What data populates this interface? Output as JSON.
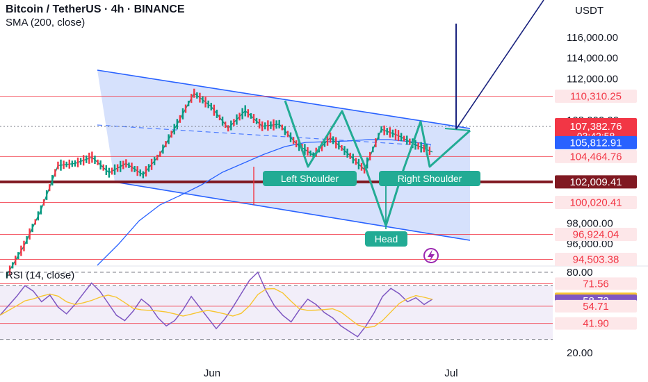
{
  "header": {
    "title": "Bitcoin / TetherUS · 4h · BINANCE",
    "indicator": "SMA (200, close)",
    "rsi_label": "RSI (14, close)",
    "currency": "USDT"
  },
  "colors": {
    "channel_fill": "#cfdcfb",
    "channel_line": "#2962ff",
    "pattern": "#22ab94",
    "sma": "#2962ff",
    "support": "#f23645",
    "key_level": "#801922",
    "rsi_line": "#7e57c2",
    "rsi_ma": "#f7c531"
  },
  "chart_data": [
    {
      "type": "line",
      "title": "Bitcoin / TetherUS · 4h · BINANCE",
      "ylabel": "USDT",
      "ylim": [
        93000,
        119500
      ],
      "x_ticks": [
        "Jun",
        "Jul"
      ],
      "y_ticks": [
        "116,000.00",
        "114,000.00",
        "112,000.00",
        "108,000.00",
        "98,000.00",
        "96,000.00"
      ],
      "series": [
        {
          "name": "BTCUSDT",
          "x": [
            0,
            6,
            12,
            18,
            24,
            30,
            36,
            42,
            48,
            54,
            60,
            66,
            72,
            78,
            84,
            90,
            96,
            102,
            108,
            114,
            120,
            126,
            132,
            138,
            144,
            150
          ],
          "values": [
            93000,
            95800,
            99300,
            103600,
            103800,
            104400,
            102900,
            103800,
            102700,
            104700,
            107600,
            110600,
            109300,
            107200,
            108900,
            107400,
            107600,
            105700,
            104600,
            106300,
            104800,
            103200,
            107100,
            106500,
            105600,
            104900
          ]
        }
      ],
      "price_levels": [
        {
          "value": 110310.25,
          "label": "110,310.25",
          "kind": "resistance"
        },
        {
          "value": 107382.76,
          "label": "107,382.76",
          "kind": "last"
        },
        {
          "value": 105812.91,
          "label": "105,812.91",
          "kind": "sma"
        },
        {
          "value": 104464.76,
          "label": "104,464.76",
          "kind": "support"
        },
        {
          "value": 102009.41,
          "label": "102,009.41",
          "kind": "key"
        },
        {
          "value": 100020.41,
          "label": "100,020.41",
          "kind": "support"
        },
        {
          "value": 96924.04,
          "label": "96,924.04",
          "kind": "support"
        },
        {
          "value": 94503.38,
          "label": "94,503.38",
          "kind": "support"
        }
      ],
      "countdown": "03:42:58",
      "annotations": [
        "Left Shoulder",
        "Right Shoulder",
        "Head"
      ]
    },
    {
      "type": "line",
      "title": "RSI (14, close)",
      "ylim": [
        18,
        83
      ],
      "y_ticks": [
        "80.00",
        "20.00"
      ],
      "series": [
        {
          "name": "RSI",
          "values": [
            48,
            55,
            62,
            70,
            66,
            58,
            63,
            54,
            49,
            56,
            64,
            72,
            66,
            57,
            48,
            44,
            51,
            60,
            55,
            46,
            40,
            44,
            52,
            62,
            54,
            46,
            38,
            45,
            54,
            64,
            74,
            80,
            66,
            55,
            48,
            43,
            52,
            60,
            56,
            50,
            46,
            40,
            36,
            32,
            40,
            50,
            62,
            68,
            64,
            58,
            61,
            56,
            60
          ]
        }
      ],
      "level_labels": [
        {
          "value": 71.56,
          "label": "71.56",
          "kind": "red"
        },
        {
          "value": 60.24,
          "label": "60.24",
          "kind": "yellow"
        },
        {
          "value": 58.72,
          "label": "58.72",
          "kind": "purple"
        },
        {
          "value": 54.71,
          "label": "54.71",
          "kind": "red"
        },
        {
          "value": 41.9,
          "label": "41.90",
          "kind": "red"
        }
      ]
    }
  ]
}
